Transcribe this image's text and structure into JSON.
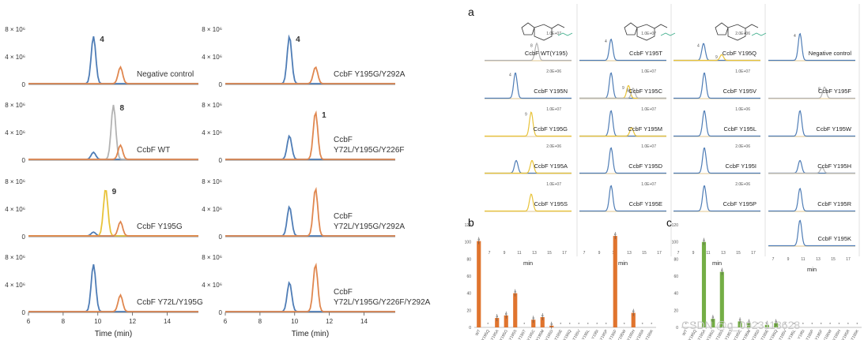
{
  "colors": {
    "blue": "#4f7db6",
    "orange": "#e0874f",
    "gold": "#e8c33a",
    "gray": "#b3b3b3",
    "axis": "#555555",
    "green": "#74ae45",
    "bar_orange": "#e0742e"
  },
  "left": {
    "xlabel": "Time (min)",
    "x_ticks": [
      "6",
      "8",
      "10",
      "12",
      "14"
    ],
    "y_ticks": [
      "0",
      "4 × 10⁶",
      "8 × 10⁶"
    ],
    "columns": [
      {
        "panels": [
          {
            "label": "Negative control",
            "peaks": [
              {
                "t": 9.75,
                "h": 1.0,
                "color": "blue",
                "tag": "4"
              },
              {
                "t": 11.3,
                "h": 0.35,
                "color": "orange",
                "tag": ""
              }
            ]
          },
          {
            "label": "CcbF WT",
            "peaks": [
              {
                "t": 9.75,
                "h": 0.15,
                "color": "blue",
                "tag": ""
              },
              {
                "t": 10.9,
                "h": 1.15,
                "color": "gray",
                "tag": "8"
              },
              {
                "t": 11.3,
                "h": 0.3,
                "color": "orange",
                "tag": ""
              }
            ]
          },
          {
            "label": "CcbF Y195G",
            "peaks": [
              {
                "t": 9.75,
                "h": 0.08,
                "color": "blue",
                "tag": ""
              },
              {
                "t": 10.45,
                "h": 1.0,
                "color": "gold",
                "tag": "9"
              },
              {
                "t": 11.3,
                "h": 0.3,
                "color": "orange",
                "tag": ""
              }
            ]
          },
          {
            "label": "CcbF Y72L/Y195G",
            "peaks": [
              {
                "t": 9.75,
                "h": 1.0,
                "color": "blue",
                "tag": ""
              },
              {
                "t": 11.3,
                "h": 0.35,
                "color": "orange",
                "tag": ""
              }
            ]
          }
        ]
      },
      {
        "panels": [
          {
            "label": "CcbF Y195G/Y292A",
            "peaks": [
              {
                "t": 9.7,
                "h": 1.0,
                "color": "blue",
                "tag": "4"
              },
              {
                "t": 11.2,
                "h": 0.35,
                "color": "orange",
                "tag": ""
              }
            ]
          },
          {
            "label": "CcbF\nY72L/Y195G/Y226F",
            "peaks": [
              {
                "t": 9.7,
                "h": 0.5,
                "color": "blue",
                "tag": ""
              },
              {
                "t": 11.2,
                "h": 1.0,
                "color": "orange",
                "tag": "1"
              }
            ]
          },
          {
            "label": "CcbF\nY72L/Y195G/Y292A",
            "peaks": [
              {
                "t": 9.7,
                "h": 0.62,
                "color": "blue",
                "tag": ""
              },
              {
                "t": 11.2,
                "h": 1.0,
                "color": "orange",
                "tag": ""
              }
            ]
          },
          {
            "label": "CcbF\nY72L/Y195G/Y226F/Y292A",
            "peaks": [
              {
                "t": 9.7,
                "h": 0.62,
                "color": "blue",
                "tag": ""
              },
              {
                "t": 11.2,
                "h": 1.0,
                "color": "orange",
                "tag": ""
              }
            ]
          }
        ]
      }
    ]
  },
  "panel_a": {
    "tag": "a",
    "xlabel": "min",
    "x_ticks": [
      "7",
      "9",
      "11",
      "13",
      "15",
      "17"
    ],
    "grid": [
      [
        {
          "label": "CcbF WT(Y195)",
          "scale": "1.0E+07",
          "peaks": [
            {
              "t": 13.6,
              "h": 0.6,
              "color": "gray",
              "tag": "8"
            }
          ]
        },
        {
          "label": "CcbF Y195T",
          "scale": "1.0E+07",
          "peaks": [
            {
              "t": 11.0,
              "h": 0.75,
              "color": "blue",
              "tag": "4"
            }
          ]
        },
        {
          "label": "CcbF Y195Q",
          "scale": "2.0E+06",
          "peaks": [
            {
              "t": 10.8,
              "h": 0.6,
              "color": "blue",
              "tag": "4"
            },
            {
              "t": 13.1,
              "h": 0.2,
              "color": "gold",
              "tag": "9"
            }
          ]
        },
        {
          "label": "Negative control",
          "scale": "",
          "peaks": [
            {
              "t": 11.0,
              "h": 0.95,
              "color": "blue",
              "tag": "4"
            }
          ]
        }
      ],
      [
        {
          "label": "CcbF Y195N",
          "scale": "2.0E+06",
          "peaks": [
            {
              "t": 10.9,
              "h": 0.9,
              "color": "blue",
              "tag": "4"
            }
          ]
        },
        {
          "label": "CcbF Y195C",
          "scale": "1.0E+07",
          "peaks": [
            {
              "t": 11.0,
              "h": 0.9,
              "color": "blue",
              "tag": ""
            },
            {
              "t": 13.2,
              "h": 0.45,
              "color": "gold",
              "tag": "9"
            },
            {
              "t": 13.8,
              "h": 0.35,
              "color": "gray",
              "tag": "8"
            }
          ]
        },
        {
          "label": "CcbF Y195V",
          "scale": "1.0E+07",
          "peaks": [
            {
              "t": 10.9,
              "h": 0.9,
              "color": "blue",
              "tag": ""
            }
          ]
        },
        {
          "label": "CcbF Y195F",
          "scale": "",
          "peaks": [
            {
              "t": 14.1,
              "h": 0.4,
              "color": "gray",
              "tag": "8"
            }
          ]
        }
      ],
      [
        {
          "label": "CcbF Y195G",
          "scale": "1.0E+07",
          "peaks": [
            {
              "t": 12.9,
              "h": 0.85,
              "color": "gold",
              "tag": "9"
            }
          ]
        },
        {
          "label": "CcbF Y195M",
          "scale": "1.0E+07",
          "peaks": [
            {
              "t": 11.0,
              "h": 0.9,
              "color": "blue",
              "tag": ""
            },
            {
              "t": 13.6,
              "h": 0.3,
              "color": "gold",
              "tag": ""
            }
          ]
        },
        {
          "label": "CcbF Y195L",
          "scale": "1.0E+06",
          "peaks": [
            {
              "t": 10.9,
              "h": 0.9,
              "color": "blue",
              "tag": ""
            }
          ]
        },
        {
          "label": "CcbF Y195W",
          "scale": "",
          "peaks": [
            {
              "t": 11.0,
              "h": 0.9,
              "color": "blue",
              "tag": ""
            }
          ]
        }
      ],
      [
        {
          "label": "CcbF Y195A",
          "scale": "2.0E+06",
          "peaks": [
            {
              "t": 11.0,
              "h": 0.45,
              "color": "blue",
              "tag": ""
            },
            {
              "t": 13.0,
              "h": 0.45,
              "color": "gold",
              "tag": ""
            }
          ]
        },
        {
          "label": "CcbF Y195D",
          "scale": "1.0E+07",
          "peaks": [
            {
              "t": 11.0,
              "h": 0.9,
              "color": "blue",
              "tag": ""
            }
          ]
        },
        {
          "label": "CcbF Y195I",
          "scale": "2.0E+06",
          "peaks": [
            {
              "t": 10.9,
              "h": 0.9,
              "color": "blue",
              "tag": ""
            }
          ]
        },
        {
          "label": "CcbF Y195H",
          "scale": "",
          "peaks": [
            {
              "t": 11.0,
              "h": 0.45,
              "color": "blue",
              "tag": ""
            },
            {
              "t": 13.8,
              "h": 0.2,
              "color": "gray",
              "tag": ""
            }
          ]
        }
      ],
      [
        {
          "label": "CcbF Y195S",
          "scale": "1.0E+07",
          "peaks": [
            {
              "t": 12.9,
              "h": 0.6,
              "color": "gold",
              "tag": ""
            }
          ]
        },
        {
          "label": "CcbF Y195E",
          "scale": "1.0E+07",
          "peaks": [
            {
              "t": 11.0,
              "h": 0.9,
              "color": "blue",
              "tag": ""
            }
          ]
        },
        {
          "label": "CcbF Y195P",
          "scale": "2.0E+06",
          "peaks": [
            {
              "t": 10.9,
              "h": 0.9,
              "color": "blue",
              "tag": ""
            }
          ]
        },
        {
          "label": "CcbF Y195R",
          "scale": "",
          "peaks": [
            {
              "t": 11.0,
              "h": 0.8,
              "color": "blue",
              "tag": ""
            }
          ]
        }
      ],
      [
        null,
        null,
        null,
        {
          "label": "CcbF Y195K",
          "scale": "",
          "peaks": [
            {
              "t": 11.0,
              "h": 0.9,
              "color": "blue",
              "tag": ""
            }
          ]
        }
      ]
    ]
  },
  "chart_data": [
    {
      "type": "bar",
      "title": "b",
      "color": "orange",
      "categories": [
        "WT",
        "Y195Q",
        "Y195A",
        "Y195G",
        "Y195S",
        "Y195T",
        "Y195C",
        "Y195M",
        "Y195D",
        "Y195E",
        "Y195Q",
        "Y195V",
        "Y195L",
        "Y195I",
        "Y195P",
        "Y195F",
        "Y195W",
        "Y195H",
        "Y195R",
        "Y195K"
      ],
      "values": [
        101,
        0,
        11,
        14,
        40,
        0,
        9,
        12,
        2,
        0,
        0,
        0,
        0,
        0,
        0,
        107,
        0,
        17,
        0,
        0
      ],
      "ylim": [
        0,
        120
      ],
      "yticks": [
        0,
        20,
        40,
        60,
        80,
        100,
        120
      ],
      "xlabel": "",
      "ylabel": ""
    },
    {
      "type": "bar",
      "title": "c",
      "color": "green",
      "categories": [
        "WT",
        "Y195Q",
        "Y195A",
        "Y195G",
        "Y195S",
        "Y195T",
        "Y195C",
        "Y195M",
        "Y195D",
        "Y195E",
        "Y195Q",
        "Y195V",
        "Y195L",
        "Y195I",
        "Y195P",
        "Y195F",
        "Y195W",
        "Y195H",
        "Y195R",
        "Y195K"
      ],
      "values": [
        0,
        0,
        100,
        10,
        65,
        0,
        7,
        5,
        0,
        3,
        5,
        0,
        0,
        0,
        0,
        0,
        0,
        0,
        0,
        0
      ],
      "ylim": [
        0,
        120
      ],
      "yticks": [
        0,
        20,
        40,
        60,
        80,
        100,
        120
      ],
      "xlabel": "",
      "ylabel": ""
    }
  ],
  "watermark": "CSDN @q_0923113628"
}
